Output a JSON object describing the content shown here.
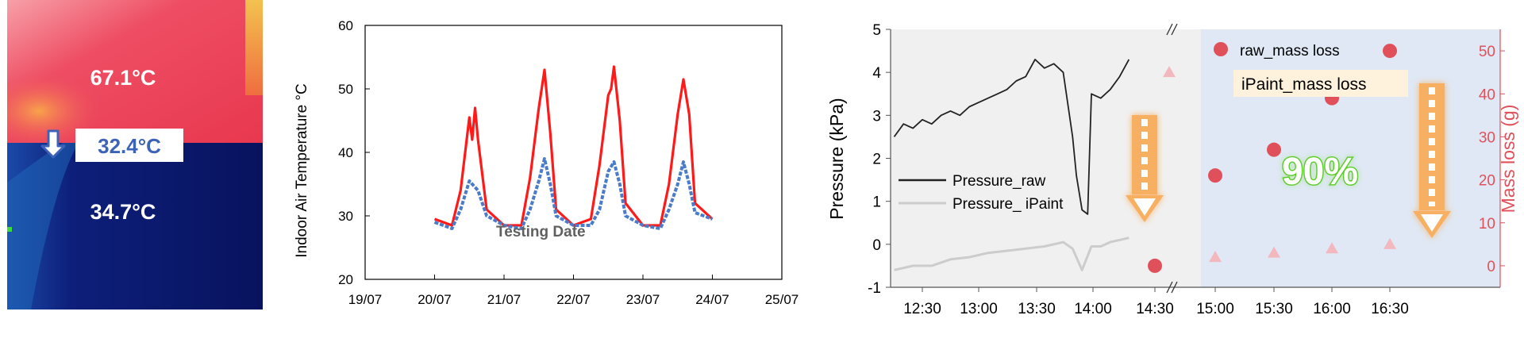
{
  "thermal_image": {
    "readings": {
      "top": "67.1°C",
      "middle": "32.4°C",
      "bottom": "34.7°C"
    },
    "colors": {
      "hot": "#ee3f5a",
      "cool_boundary": "#e8e8e8",
      "cold": "#0a1a66",
      "middle_label_text": "#3d63b8"
    },
    "arrow_icon": "down-arrow-icon"
  },
  "chart_data": [
    {
      "type": "line",
      "title": "",
      "xlabel": "Testing Date",
      "ylabel": "Indoor Air Temperature °C",
      "x_ticks": [
        "19/07",
        "20/07",
        "21/07",
        "22/07",
        "23/07",
        "24/07",
        "25/07"
      ],
      "y_ticks": [
        "20",
        "30",
        "40",
        "50",
        "60"
      ],
      "ylim": [
        20,
        60
      ],
      "grid": false,
      "series": [
        {
          "color": "#ff1a1a",
          "style": "solid",
          "x": [
            "20/07 00:00",
            "20/07 06:00",
            "20/07 09:00",
            "20/07 12:00",
            "20/07 13:00",
            "20/07 14:00",
            "20/07 15:00",
            "20/07 18:00",
            "21/07 00:00",
            "21/07 06:00",
            "21/07 09:00",
            "21/07 12:00",
            "21/07 14:00",
            "21/07 16:00",
            "21/07 18:00",
            "22/07 00:00",
            "22/07 06:00",
            "22/07 09:00",
            "22/07 12:00",
            "22/07 13:00",
            "22/07 14:00",
            "22/07 16:00",
            "22/07 18:00",
            "23/07 00:00",
            "23/07 06:00",
            "23/07 09:00",
            "23/07 12:00",
            "23/07 14:00",
            "23/07 16:00",
            "23/07 18:00",
            "24/07 00:00"
          ],
          "values": [
            29.5,
            28.5,
            34,
            45.5,
            42,
            47,
            42,
            31,
            28.5,
            28.5,
            36,
            47,
            53,
            43,
            31,
            28.5,
            29.5,
            38,
            49,
            50,
            53.5,
            45,
            32,
            28.5,
            28.5,
            35,
            46,
            51.5,
            46,
            32,
            29.5
          ]
        },
        {
          "color": "#4a7cc9",
          "style": "dashed",
          "x": [
            "20/07 00:00",
            "20/07 06:00",
            "20/07 09:00",
            "20/07 12:00",
            "20/07 15:00",
            "20/07 18:00",
            "21/07 00:00",
            "21/07 06:00",
            "21/07 09:00",
            "21/07 12:00",
            "21/07 14:00",
            "21/07 16:00",
            "21/07 18:00",
            "22/07 00:00",
            "22/07 06:00",
            "22/07 09:00",
            "22/07 12:00",
            "22/07 14:00",
            "22/07 16:00",
            "22/07 18:00",
            "23/07 00:00",
            "23/07 06:00",
            "23/07 09:00",
            "23/07 12:00",
            "23/07 14:00",
            "23/07 16:00",
            "23/07 18:00",
            "24/07 00:00"
          ],
          "values": [
            29,
            28,
            31,
            35.5,
            34,
            30,
            28.5,
            28,
            31,
            35.5,
            39,
            35,
            30,
            28.5,
            28.5,
            31,
            37,
            38.5,
            35,
            30,
            28.5,
            28,
            31,
            35,
            38.5,
            35,
            30.5,
            29.5
          ]
        }
      ]
    },
    {
      "type": "line",
      "title": "",
      "xlabel": "",
      "ylabel": "Pressure (kPa)",
      "y2label": "Mass loss (g)",
      "x_ticks": [
        "12:30",
        "13:00",
        "13:30",
        "14:00",
        "14:30",
        "15:00",
        "15:30",
        "16:00",
        "16:30"
      ],
      "y_ticks": [
        "-1",
        "0",
        "1",
        "2",
        "3",
        "4",
        "5"
      ],
      "y2_ticks": [
        "0",
        "10",
        "20",
        "30",
        "40",
        "50"
      ],
      "ylim": [
        -1,
        5
      ],
      "y2lim": [
        -5,
        55
      ],
      "axis_break": "between 14:00 and 14:30",
      "legend_left": "center-left",
      "legend_right": "top-right",
      "annotation": "90%",
      "series": [
        {
          "name": "Pressure_raw",
          "color": "#222222",
          "x": [
            "12:15",
            "12:20",
            "12:25",
            "12:30",
            "12:35",
            "12:40",
            "12:45",
            "12:50",
            "12:55",
            "13:00",
            "13:05",
            "13:10",
            "13:15",
            "13:20",
            "13:25",
            "13:30",
            "13:35",
            "13:40",
            "13:45",
            "13:50",
            "13:52",
            "13:55",
            "13:58",
            "14:00",
            "14:05",
            "14:10",
            "14:15",
            "14:20"
          ],
          "values": [
            2.5,
            2.8,
            2.7,
            2.9,
            2.8,
            3.0,
            3.1,
            3.0,
            3.2,
            3.3,
            3.4,
            3.5,
            3.6,
            3.8,
            3.9,
            4.3,
            4.1,
            4.2,
            4.0,
            2.5,
            1.6,
            0.8,
            0.7,
            3.5,
            3.4,
            3.6,
            3.9,
            4.3
          ]
        },
        {
          "name": "Pressure_ iPaint",
          "color": "#cccccc",
          "x": [
            "12:15",
            "12:25",
            "12:35",
            "12:45",
            "12:55",
            "13:05",
            "13:15",
            "13:25",
            "13:35",
            "13:45",
            "13:50",
            "13:55",
            "14:00",
            "14:05",
            "14:10",
            "14:15",
            "14:20"
          ],
          "values": [
            -0.6,
            -0.5,
            -0.5,
            -0.35,
            -0.3,
            -0.2,
            -0.15,
            -0.1,
            -0.05,
            0.05,
            -0.1,
            -0.6,
            -0.05,
            -0.05,
            0.05,
            0.1,
            0.15
          ]
        },
        {
          "name": "raw_mass loss",
          "color": "#e0505a",
          "marker": "circle",
          "x": [
            "14:30",
            "15:00",
            "15:30",
            "16:00",
            "16:30"
          ],
          "values": [
            0,
            21,
            27,
            39,
            50
          ]
        },
        {
          "name": "iPaint_mass loss",
          "color": "#f2b8be",
          "marker": "triangle",
          "x": [
            "14:30",
            "15:00",
            "15:30",
            "16:00",
            "16:30"
          ],
          "values": [
            45,
            2,
            3,
            4,
            5
          ]
        }
      ]
    }
  ]
}
